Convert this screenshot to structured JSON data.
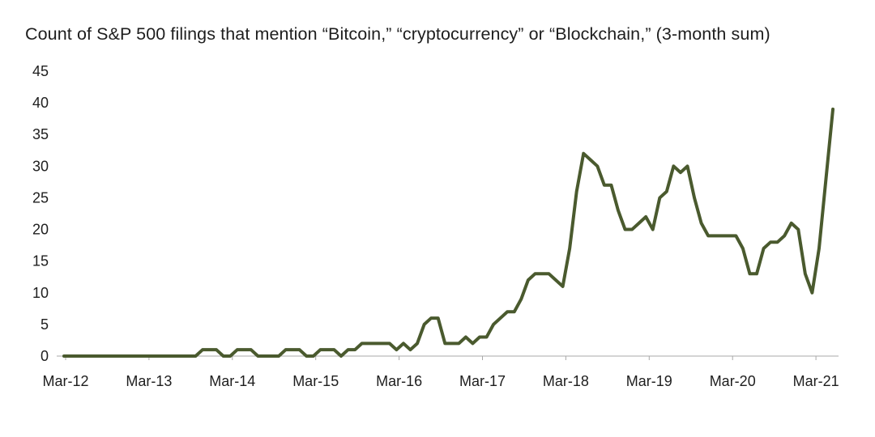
{
  "chart_data": {
    "type": "line",
    "title": "Count of S&P 500 filings that mention “Bitcoin,” “cryptocurrency” or “Blockchain,” (3-month sum)",
    "xlabel": "",
    "ylabel": "",
    "ylim": [
      0,
      45
    ],
    "yticks": [
      0,
      5,
      10,
      15,
      20,
      25,
      30,
      35,
      40,
      45
    ],
    "xtick_labels": [
      "Mar-12",
      "Mar-13",
      "Mar-14",
      "Mar-15",
      "Mar-16",
      "Mar-17",
      "Mar-18",
      "Mar-19",
      "Mar-20",
      "Mar-21"
    ],
    "grid": false,
    "legend": "none",
    "line_color": "#4a5a2e",
    "series": [
      {
        "values": [
          0,
          0,
          0,
          0,
          0,
          0,
          0,
          0,
          0,
          0,
          0,
          0,
          0,
          0,
          0,
          0,
          0,
          0,
          0,
          0,
          1,
          1,
          1,
          0,
          0,
          1,
          1,
          1,
          0,
          0,
          0,
          0,
          1,
          1,
          1,
          0,
          0,
          1,
          1,
          1,
          0,
          1,
          1,
          2,
          2,
          2,
          2,
          2,
          1,
          2,
          1,
          2,
          5,
          6,
          6,
          2,
          2,
          2,
          3,
          2,
          3,
          3,
          5,
          6,
          7,
          7,
          9,
          12,
          13,
          13,
          13,
          12,
          11,
          17,
          26,
          32,
          31,
          30,
          27,
          27,
          23,
          20,
          20,
          21,
          22,
          20,
          25,
          26,
          30,
          29,
          30,
          25,
          21,
          19,
          19,
          19,
          19,
          19,
          17,
          13,
          13,
          17,
          18,
          18,
          19,
          21,
          20,
          13,
          10,
          17,
          28,
          39
        ]
      }
    ]
  }
}
